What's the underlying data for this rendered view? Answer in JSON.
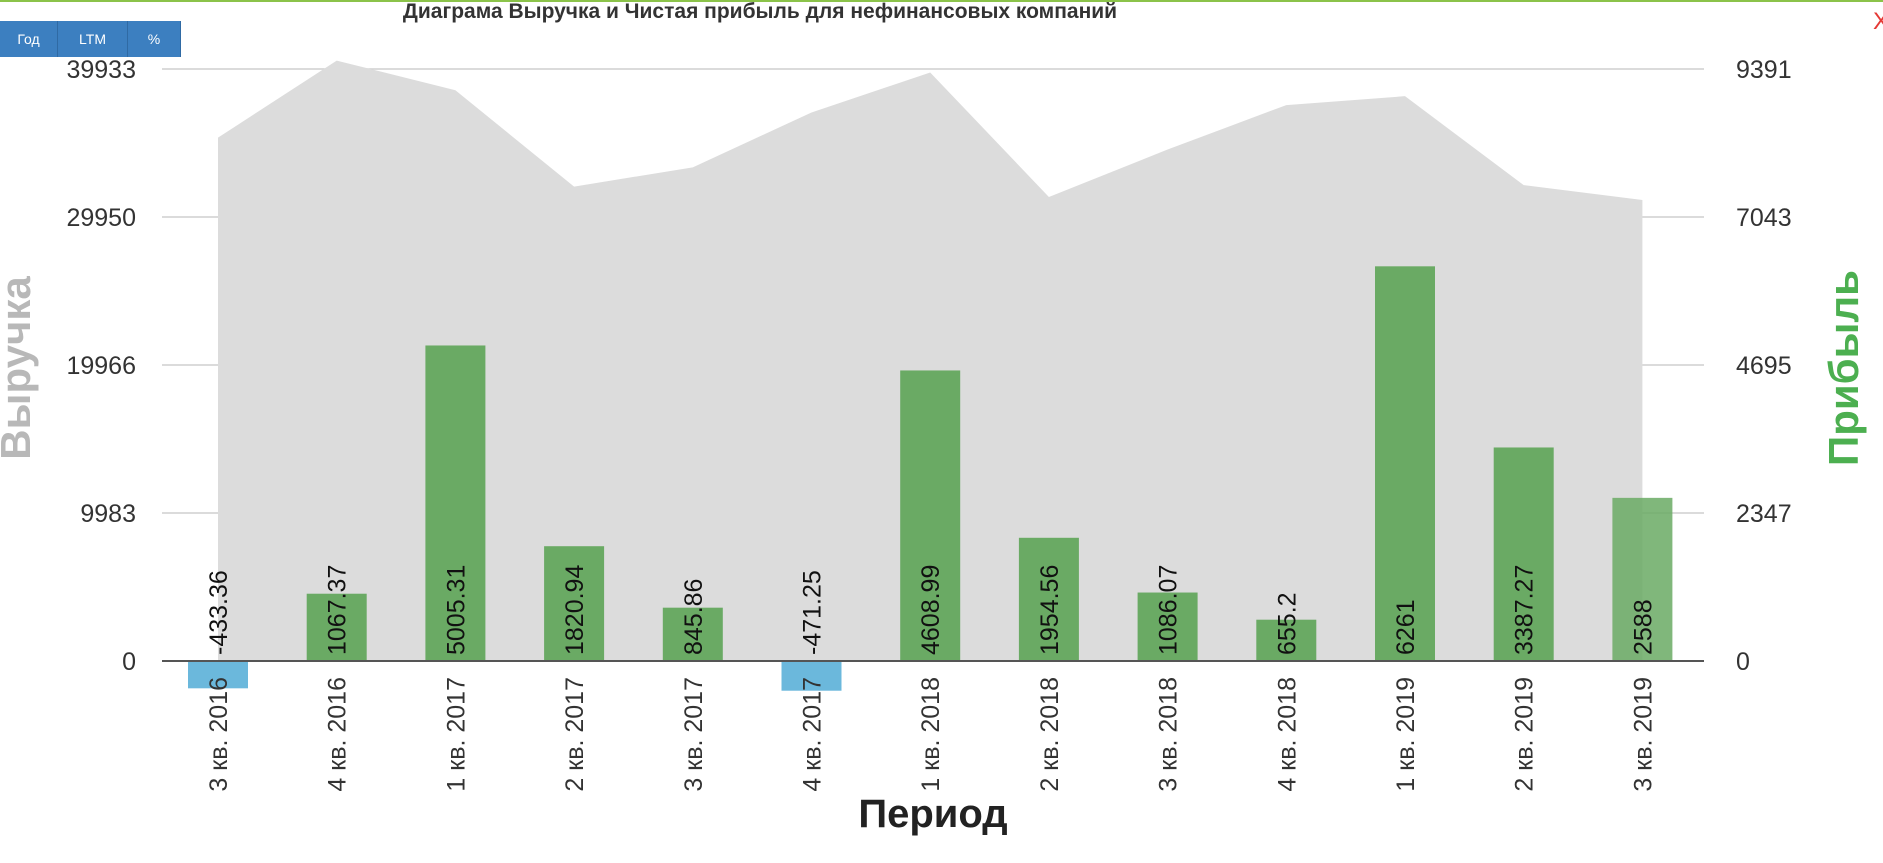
{
  "toolbar": {
    "year_label": "Год",
    "ltm_label": "LTM",
    "percent_label": "%"
  },
  "close_label": "X",
  "colors": {
    "revenue_area": "#dcdcdc",
    "profit_positive": "#6aaa64",
    "profit_negative": "#6bb8dc",
    "grid": "#cfcfcf"
  },
  "chart_data": {
    "type": "bar",
    "title": "Диаграма Выручка и Чистая прибыль для нефинансовых компаний",
    "xlabel": "Период",
    "ylabel_left": "Выручка",
    "ylabel_right": "Прибыль",
    "categories": [
      "3 кв. 2016",
      "4 кв. 2016",
      "1 кв. 2017",
      "2 кв. 2017",
      "3 кв. 2017",
      "4 кв. 2017",
      "1 кв. 2018",
      "2 кв. 2018",
      "3 кв. 2018",
      "4 кв. 2018",
      "1 кв. 2019",
      "2 кв. 2019",
      "3 кв. 2019"
    ],
    "left_axis": {
      "ticks": [
        "0",
        "9983",
        "19966",
        "29950",
        "39933"
      ],
      "ylim": [
        0,
        39933
      ]
    },
    "right_axis": {
      "ticks": [
        "0",
        "2347",
        "4695",
        "7043",
        "9391"
      ],
      "ylim": [
        0,
        9391
      ]
    },
    "grid": true,
    "series": [
      {
        "name": "Выручка",
        "type": "area",
        "axis": "left",
        "values": [
          35300,
          40500,
          38500,
          32000,
          33300,
          37000,
          39700,
          31300,
          34500,
          37500,
          38100,
          32100,
          31100
        ]
      },
      {
        "name": "Прибыль",
        "type": "bar",
        "axis": "right",
        "values": [
          -433.36,
          1067.37,
          5005.31,
          1820.94,
          845.86,
          -471.25,
          4608.99,
          1954.56,
          1086.07,
          655.2,
          6261,
          3387.27,
          2588
        ]
      }
    ],
    "data_labels": [
      "-433.36",
      "1067.37",
      "5005.31",
      "1820.94",
      "845.86",
      "-471.25",
      "4608.99",
      "1954.56",
      "1086.07",
      "655.2",
      "6261",
      "3387.27",
      "2588"
    ]
  }
}
